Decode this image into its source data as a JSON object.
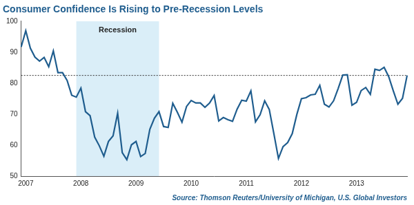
{
  "chart_data": {
    "type": "line",
    "title": "Consumer Confidence Is Rising to Pre-Recession Levels",
    "source": "Source: Thomson Reuters/University of Michigan, U.S. Global Investors",
    "categories": [
      null,
      "2007",
      null,
      null,
      null,
      null,
      null,
      null,
      null,
      null,
      null,
      null,
      null,
      "2008",
      null,
      null,
      null,
      null,
      null,
      null,
      null,
      null,
      null,
      null,
      null,
      "2009",
      null,
      null,
      null,
      null,
      null,
      null,
      null,
      null,
      null,
      null,
      null,
      "2010",
      null,
      null,
      null,
      null,
      null,
      null,
      null,
      null,
      null,
      null,
      null,
      "2011",
      null,
      null,
      null,
      null,
      null,
      null,
      null,
      null,
      null,
      null,
      null,
      "2012",
      null,
      null,
      null,
      null,
      null,
      null,
      null,
      null,
      null,
      null,
      null,
      "2013",
      null,
      null,
      null,
      null,
      null,
      null,
      null,
      null,
      null,
      null,
      null
    ],
    "values": [
      91.7,
      96.9,
      91.3,
      88.4,
      87.1,
      88.3,
      85.3,
      90.4,
      83.4,
      83.4,
      80.9,
      76.1,
      75.5,
      78.4,
      70.8,
      69.5,
      62.6,
      59.8,
      56.4,
      61.2,
      63.0,
      70.3,
      57.6,
      55.3,
      60.1,
      61.2,
      56.3,
      57.3,
      65.1,
      68.7,
      70.8,
      66.0,
      65.7,
      73.5,
      70.6,
      67.4,
      72.5,
      74.4,
      73.6,
      73.6,
      72.2,
      73.6,
      76.0,
      67.8,
      68.9,
      68.2,
      67.7,
      71.6,
      74.5,
      74.2,
      77.5,
      67.5,
      69.8,
      74.3,
      71.5,
      63.7,
      55.7,
      59.5,
      60.8,
      63.7,
      69.9,
      75.0,
      75.3,
      76.2,
      76.4,
      79.3,
      73.2,
      72.3,
      74.3,
      78.3,
      82.6,
      82.7,
      72.9,
      73.8,
      77.6,
      78.6,
      76.4,
      84.5,
      84.1,
      85.1,
      82.1,
      77.5,
      73.2,
      75.1,
      82.5
    ],
    "color": "#1f5d8e",
    "ylim": [
      50,
      100
    ],
    "yticks": [
      50,
      60,
      70,
      80,
      90,
      100
    ],
    "grid": false,
    "annotations": [
      {
        "type": "band",
        "label": "Recession",
        "from": 12,
        "to": 30,
        "color": "#daeef8"
      },
      {
        "type": "hline",
        "value": 82.5,
        "line_style": "dashed",
        "color": "#333333"
      }
    ]
  }
}
